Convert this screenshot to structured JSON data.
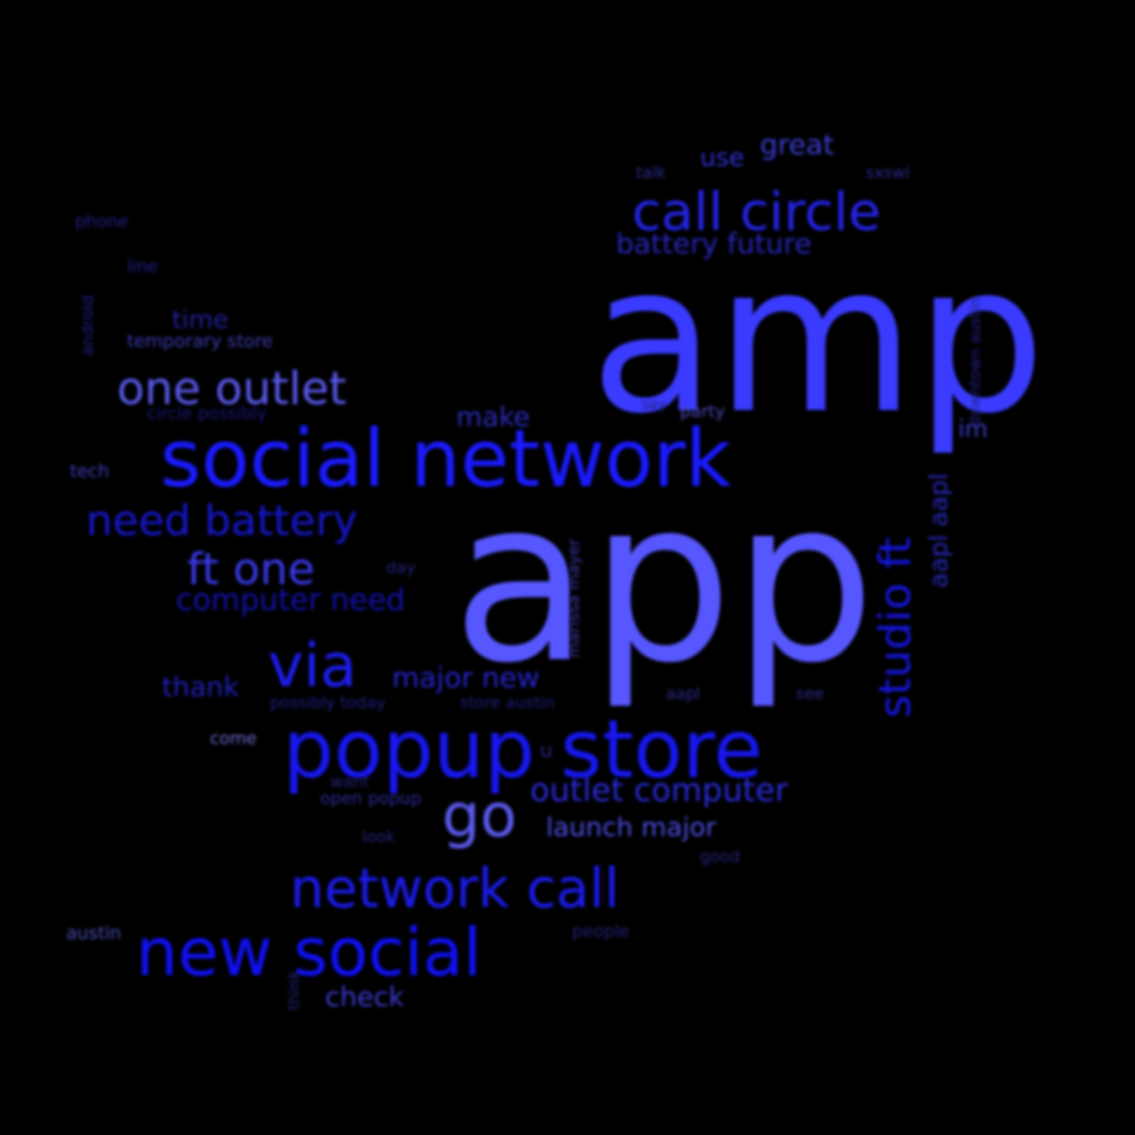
{
  "background": "#000000",
  "words": [
    {
      "text": "amp",
      "color": "#3b3bff"
    },
    {
      "text": "app",
      "color": "#5757ff"
    },
    {
      "text": "social network",
      "color": "#1a1aff"
    },
    {
      "text": "popup store",
      "color": "#1717ef"
    },
    {
      "text": "new social",
      "color": "#1010f5"
    },
    {
      "text": "network call",
      "color": "#1b1bee"
    },
    {
      "text": "call circle",
      "color": "#2424e8"
    },
    {
      "text": "one outlet",
      "color": "#5a5aef"
    },
    {
      "text": "via",
      "color": "#1d1df0"
    },
    {
      "text": "go",
      "color": "#5a5aee"
    },
    {
      "text": "need battery",
      "color": "#1616cc"
    },
    {
      "text": "ft one",
      "color": "#3a3aee"
    },
    {
      "text": "studio ft",
      "color": "#1515dd"
    },
    {
      "text": "outlet computer",
      "color": "#2a2ad8"
    },
    {
      "text": "computer need",
      "color": "#1212aa"
    },
    {
      "text": "launch major",
      "color": "#4b4be0"
    },
    {
      "text": "major new",
      "color": "#2424cc"
    },
    {
      "text": "battery future",
      "color": "#2626b8"
    },
    {
      "text": "aapl aapl",
      "color": "#2828bb"
    },
    {
      "text": "great",
      "color": "#3c3cd0"
    },
    {
      "text": "use",
      "color": "#2f2fc8"
    },
    {
      "text": "thank",
      "color": "#2020bb"
    },
    {
      "text": "make",
      "color": "#2a2ab8"
    },
    {
      "text": "check",
      "color": "#3a3ad0"
    },
    {
      "text": "time",
      "color": "#20209a"
    },
    {
      "text": "im",
      "color": "#3a3ac8"
    },
    {
      "text": "phone",
      "color": "#1e1e88"
    },
    {
      "text": "line",
      "color": "#1e1e88"
    },
    {
      "text": "android",
      "color": "#1e1e88"
    },
    {
      "text": "temporary store",
      "color": "#3a3ab0"
    },
    {
      "text": "circle possibly",
      "color": "#18187a"
    },
    {
      "text": "tech",
      "color": "#3c3cb8"
    },
    {
      "text": "talk",
      "color": "#2a2a90"
    },
    {
      "text": "sxswi",
      "color": "#2a2a90"
    },
    {
      "text": "party",
      "color": "#4a4ab8"
    },
    {
      "text": "say",
      "color": "#22227a"
    },
    {
      "text": "downtown austin",
      "color": "#22228a"
    },
    {
      "text": "marissa mayer",
      "color": "#3a3aa8"
    },
    {
      "text": "day",
      "color": "#22227a"
    },
    {
      "text": "possibly today",
      "color": "#1e1e80"
    },
    {
      "text": "store austin",
      "color": "#1e1e80"
    },
    {
      "text": "aapl",
      "color": "#2a2a88"
    },
    {
      "text": "see",
      "color": "#2a2a88"
    },
    {
      "text": "come",
      "color": "#6a6ad0"
    },
    {
      "text": "u",
      "color": "#2a2a88"
    },
    {
      "text": "want",
      "color": "#22227a"
    },
    {
      "text": "open popup",
      "color": "#2a2a98"
    },
    {
      "text": "look",
      "color": "#22227a"
    },
    {
      "text": "good",
      "color": "#22227a"
    },
    {
      "text": "austin",
      "color": "#4a4ab8"
    },
    {
      "text": "people",
      "color": "#22227a"
    },
    {
      "text": "think",
      "color": "#22227a"
    }
  ]
}
